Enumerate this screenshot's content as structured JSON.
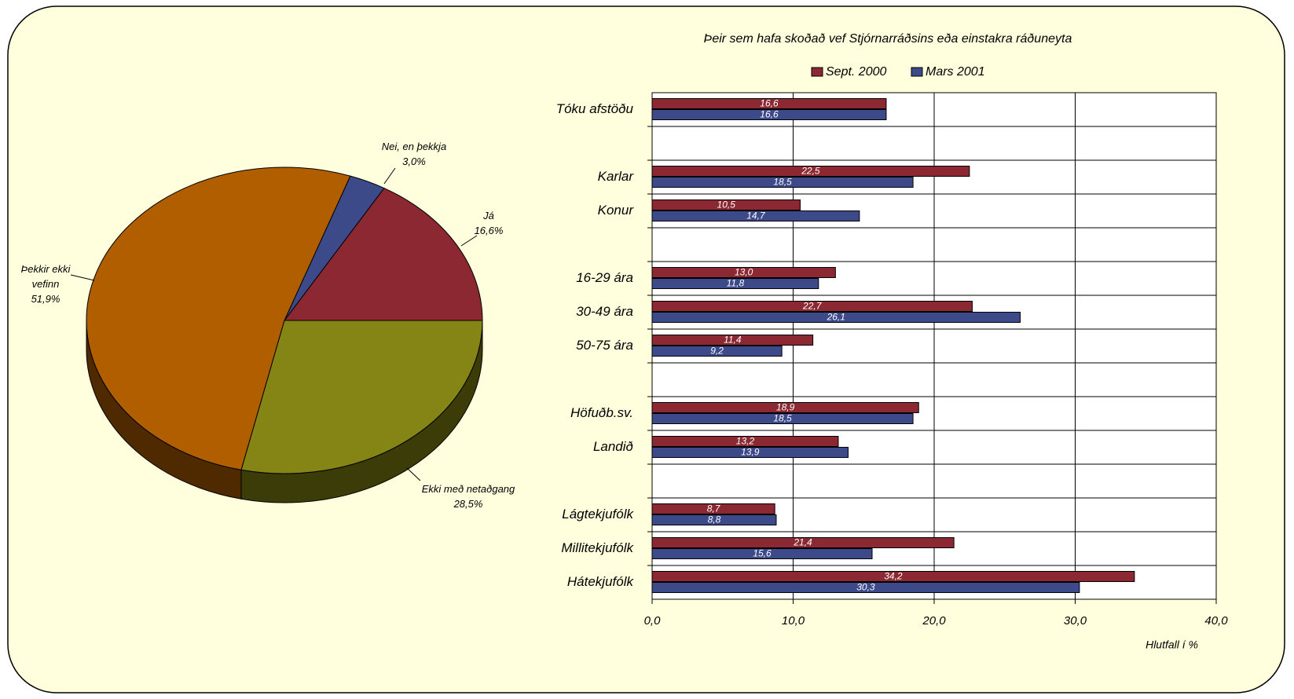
{
  "chart_data": [
    {
      "type": "pie",
      "categories": [
        "Já",
        "Nei, en þekkja",
        "Þekkir ekki vefinn",
        "Ekki með netaðgang"
      ],
      "values": [
        16.6,
        3.0,
        51.9,
        28.5
      ],
      "value_labels": [
        "16,6%",
        "3,0%",
        "51,9%",
        "28,5%"
      ],
      "colors": [
        "#8b2832",
        "#3d4a8a",
        "#b05e00",
        "#858515"
      ]
    },
    {
      "type": "bar",
      "orientation": "horizontal",
      "title": "Þeir sem hafa skoðað vef Stjórnarráðsins eða einstakra ráðuneyta",
      "categories": [
        "Tóku afstöðu",
        null,
        "Karlar",
        "Konur",
        null,
        "16-29 ára",
        "30-49 ára",
        "50-75 ára",
        null,
        "Höfuðb.sv.",
        "Landið",
        null,
        "Lágtekjufólk",
        "Millitekjufólk",
        "Hátekjufólk"
      ],
      "series": [
        {
          "name": "Sept. 2000",
          "color": "#8b2832",
          "values": [
            16.6,
            null,
            22.5,
            10.5,
            null,
            13.0,
            22.7,
            11.4,
            null,
            18.9,
            13.2,
            null,
            8.7,
            21.4,
            34.2
          ],
          "value_labels": [
            "16,6",
            null,
            "22,5",
            "10,5",
            null,
            "13,0",
            "22,7",
            "11,4",
            null,
            "18,9",
            "13,2",
            null,
            "8,7",
            "21,4",
            "34,2"
          ]
        },
        {
          "name": "Mars 2001",
          "color": "#3d4a8a",
          "values": [
            16.6,
            null,
            18.5,
            14.7,
            null,
            11.8,
            26.1,
            9.2,
            null,
            18.5,
            13.9,
            null,
            8.8,
            15.6,
            30.3
          ],
          "value_labels": [
            "16,6",
            null,
            "18,5",
            "14,7",
            null,
            "11,8",
            "26,1",
            "9,2",
            null,
            "18,5",
            "13,9",
            null,
            "8,8",
            "15,6",
            "30,3"
          ]
        }
      ],
      "xlim": [
        0,
        40
      ],
      "xticks": [
        {
          "value": 0,
          "label": "0,0"
        },
        {
          "value": 10,
          "label": "10,0"
        },
        {
          "value": 20,
          "label": "20,0"
        },
        {
          "value": 30,
          "label": "30,0"
        },
        {
          "value": 40,
          "label": "40,0"
        }
      ],
      "xlabel": "Hlutfall í %",
      "grid": true,
      "legend": "top"
    }
  ]
}
